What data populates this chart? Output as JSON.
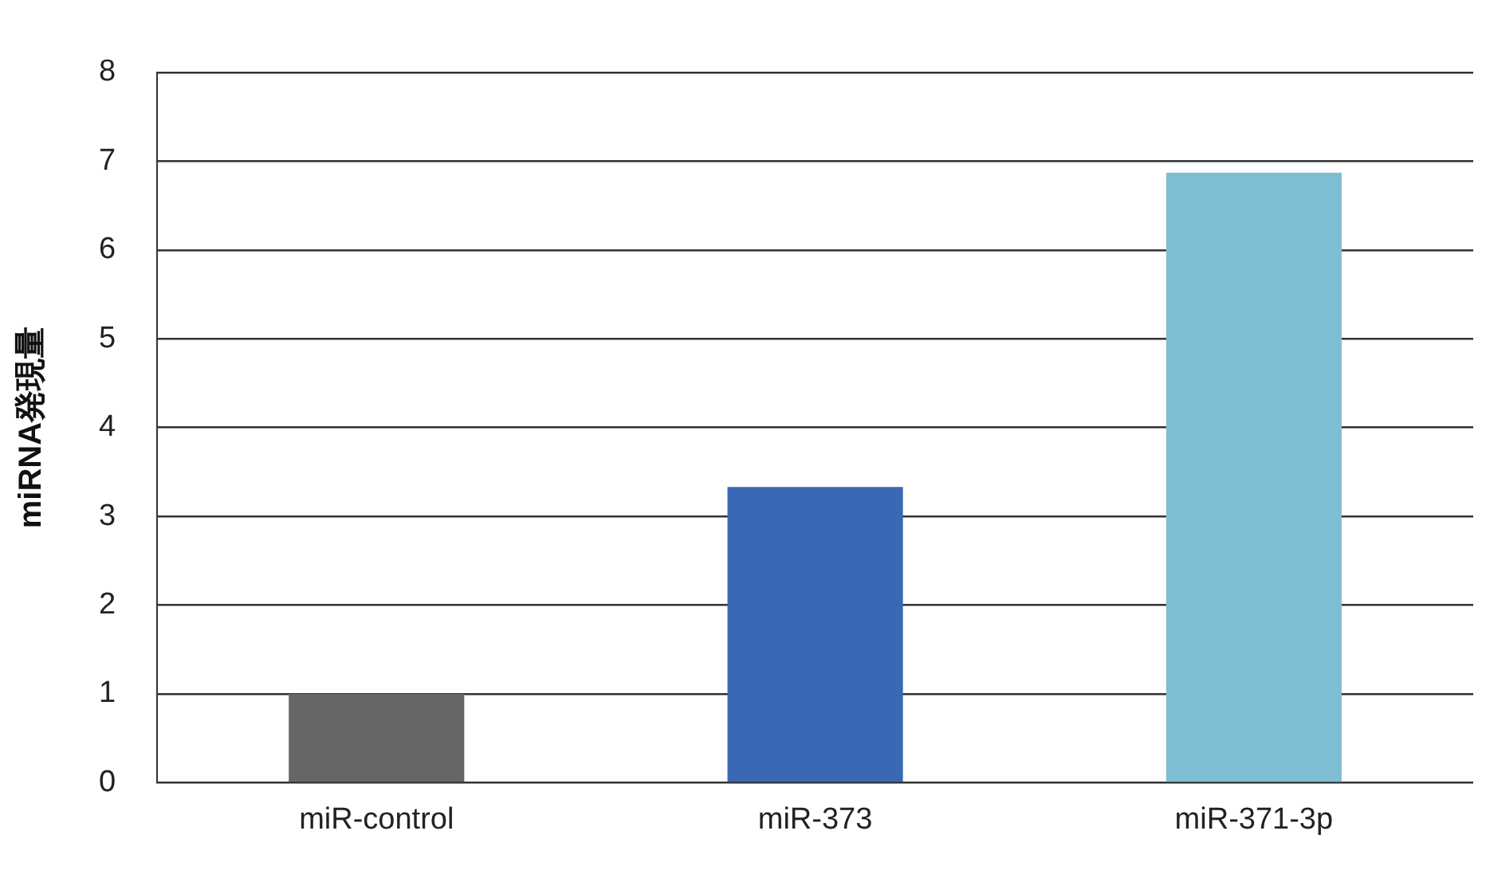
{
  "chart_data": {
    "type": "bar",
    "ylabel": "miRNA発現量",
    "categories": [
      "miR-control",
      "miR-373",
      "miR-371-3p"
    ],
    "values": [
      1,
      3.33,
      6.87
    ],
    "colors": [
      "#666666",
      "#3a68b5",
      "#7fbdd2"
    ],
    "ylim": [
      0,
      8
    ],
    "yticks": [
      0,
      1,
      2,
      3,
      4,
      5,
      6,
      7,
      8
    ],
    "grid": "y",
    "legend": false
  }
}
